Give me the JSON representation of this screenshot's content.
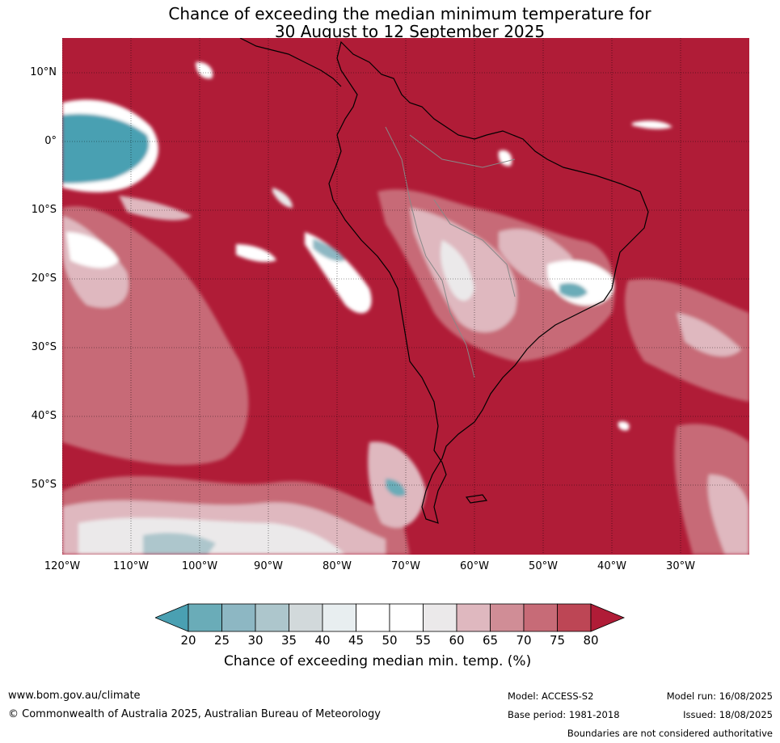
{
  "title": {
    "line1": "Chance of exceeding the median minimum temperature for",
    "line2": "30 August to 12 September 2025"
  },
  "axes": {
    "lat_labels": [
      "10°N",
      "0°",
      "10°S",
      "20°S",
      "30°S",
      "40°S",
      "50°S"
    ],
    "lon_labels": [
      "120°W",
      "110°W",
      "100°W",
      "90°W",
      "80°W",
      "70°W",
      "60°W",
      "50°W",
      "40°W",
      "30°W"
    ],
    "lat_range": [
      -60,
      15
    ],
    "lon_range": [
      -120,
      -20
    ]
  },
  "colorbar": {
    "ticks": [
      "20",
      "25",
      "30",
      "35",
      "40",
      "45",
      "50",
      "55",
      "60",
      "65",
      "70",
      "75",
      "80"
    ],
    "colors": [
      "#6aacb8",
      "#8db7c3",
      "#adc6cc",
      "#d2d9db",
      "#e8eef0",
      "#ffffff",
      "#ffffff",
      "#ebe9ea",
      "#dfb8bf",
      "#d08d96",
      "#c76b77",
      "#bd4655"
    ],
    "under_color": "#4aa0b2",
    "over_color": "#b01c37",
    "label": "Chance of exceeding median min. temp. (%)"
  },
  "map_colors": {
    "dominant": "#b01c37",
    "ocean_cool": "#4aa0b2",
    "coast": "#000000",
    "borders": "#888888"
  },
  "footer": {
    "website": "www.bom.gov.au/climate",
    "copyright": "© Commonwealth of Australia 2025, Australian Bureau of Meteorology",
    "model": "Model: ACCESS-S2",
    "base_period": "Base period: 1981-2018",
    "model_run": "Model run: 16/08/2025",
    "issued": "Issued: 18/08/2025",
    "disclaimer": "Boundaries are not considered authoritative"
  }
}
